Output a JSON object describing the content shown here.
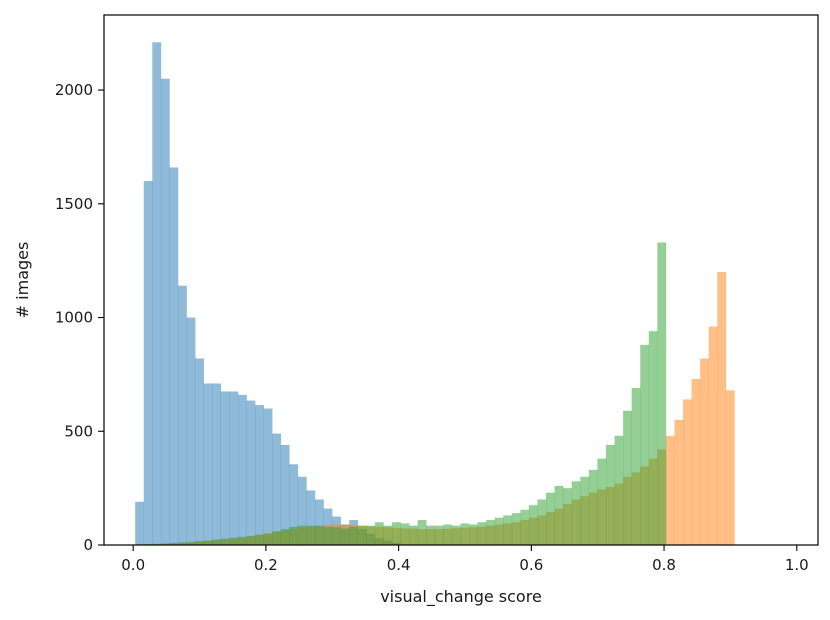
{
  "chart_data": {
    "type": "bar",
    "subtype": "overlaid-histogram",
    "title": "",
    "xlabel": "visual_change score",
    "ylabel": "# images",
    "xlim": [
      -0.044,
      1.032
    ],
    "ylim": [
      0,
      2330
    ],
    "xticks": [
      0.0,
      0.2,
      0.4,
      0.6,
      0.8,
      1.0
    ],
    "xtick_labels": [
      "0.0",
      "0.2",
      "0.4",
      "0.6",
      "0.8",
      "1.0"
    ],
    "yticks": [
      0,
      500,
      1000,
      1500,
      2000
    ],
    "ytick_labels": [
      "0",
      "500",
      "1000",
      "1500",
      "2000"
    ],
    "bin_width": 0.0129,
    "grid": false,
    "legend": "none",
    "alpha": 0.5,
    "series": [
      {
        "color": "#1f77b4",
        "x_start": 0.003,
        "values": [
          190,
          1600,
          2210,
          2050,
          1660,
          1140,
          1000,
          820,
          710,
          710,
          675,
          675,
          660,
          635,
          615,
          600,
          490,
          440,
          355,
          300,
          240,
          200,
          160,
          125,
          90,
          110,
          70,
          50,
          30,
          20,
          10
        ]
      },
      {
        "color": "#ff7f0e",
        "x_start": 0.003,
        "values": [
          2,
          3,
          4,
          6,
          8,
          10,
          12,
          15,
          18,
          20,
          24,
          28,
          32,
          38,
          45,
          52,
          58,
          64,
          70,
          76,
          80,
          84,
          87,
          90,
          90,
          88,
          85,
          82,
          80,
          78,
          75,
          73,
          72,
          70,
          70,
          70,
          72,
          74,
          76,
          78,
          80,
          85,
          90,
          95,
          100,
          110,
          120,
          130,
          145,
          160,
          180,
          200,
          215,
          230,
          245,
          255,
          270,
          300,
          320,
          345,
          380,
          420,
          480,
          550,
          640,
          730,
          820,
          960,
          1200,
          680
        ]
      },
      {
        "color": "#2ca02c",
        "x_start": 0.003,
        "values": [
          3,
          4,
          5,
          7,
          9,
          11,
          14,
          17,
          20,
          24,
          28,
          32,
          36,
          40,
          45,
          50,
          60,
          70,
          80,
          85,
          85,
          85,
          80,
          78,
          72,
          80,
          85,
          85,
          100,
          85,
          100,
          95,
          85,
          110,
          85,
          85,
          90,
          85,
          95,
          90,
          100,
          110,
          120,
          130,
          140,
          155,
          175,
          200,
          230,
          260,
          250,
          280,
          300,
          330,
          380,
          440,
          480,
          590,
          690,
          880,
          940,
          1330,
          0,
          0
        ]
      }
    ]
  }
}
